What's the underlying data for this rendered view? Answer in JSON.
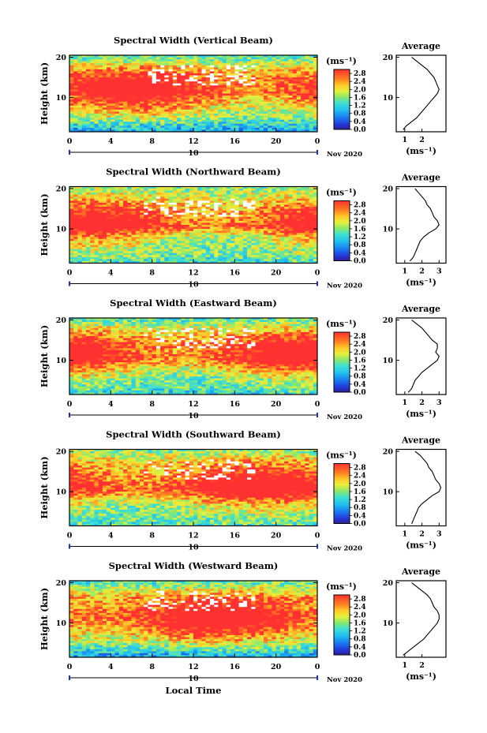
{
  "chart_data": {
    "type": "heatmap",
    "xlabel": "Local Time",
    "date_label": "Nov 2020",
    "day_label": "10",
    "x_ticks": [
      "0",
      "4",
      "8",
      "12",
      "16",
      "20",
      "0"
    ],
    "xlim": [
      0,
      24
    ],
    "ylabel": "Height (km)",
    "y_ticks": [
      "10",
      "20"
    ],
    "ylim": [
      1.5,
      20.5
    ],
    "colorbar": {
      "unit": "(ms⁻¹)",
      "ticks": [
        "0.0",
        "0.4",
        "0.8",
        "1.2",
        "1.6",
        "2.0",
        "2.4",
        "2.8"
      ],
      "range": [
        0.0,
        3.0
      ]
    },
    "average_panel": {
      "title": "Average",
      "xlabel": "(ms⁻¹)",
      "x_ticks": [
        "1",
        "2",
        "3"
      ],
      "xlim": [
        0.5,
        3.4
      ]
    },
    "panels": [
      {
        "title": "Spectral Width (Vertical Beam)",
        "avg_ticks_shown": [
          "1",
          "2"
        ],
        "heights": [
          2,
          3,
          4,
          5,
          6,
          7,
          8,
          9,
          10,
          11,
          12,
          13,
          14,
          15,
          16,
          17,
          18,
          19,
          20
        ],
        "average": [
          0.9,
          1.1,
          1.4,
          1.7,
          1.9,
          2.1,
          2.3,
          2.5,
          2.7,
          2.9,
          3.0,
          2.9,
          2.8,
          2.7,
          2.5,
          2.3,
          2.0,
          1.7,
          1.4
        ]
      },
      {
        "title": "Spectral Width (Northward Beam)",
        "avg_ticks_shown": [
          "1",
          "2",
          "3"
        ],
        "heights": [
          2,
          3,
          4,
          5,
          6,
          7,
          8,
          9,
          10,
          11,
          12,
          13,
          14,
          15,
          16,
          17,
          18,
          19,
          20
        ],
        "average": [
          1.3,
          1.5,
          1.6,
          1.7,
          1.8,
          1.9,
          2.1,
          2.4,
          2.8,
          3.0,
          2.9,
          2.7,
          2.6,
          2.5,
          2.3,
          2.2,
          2.0,
          1.8,
          1.6
        ]
      },
      {
        "title": "Spectral Width (Eastward Beam)",
        "avg_ticks_shown": [
          "1",
          "2",
          "3"
        ],
        "heights": [
          2,
          3,
          4,
          5,
          6,
          7,
          8,
          9,
          10,
          11,
          12,
          13,
          14,
          15,
          16,
          17,
          18,
          19,
          20
        ],
        "average": [
          1.2,
          1.4,
          1.5,
          1.6,
          1.8,
          2.0,
          2.3,
          2.6,
          2.9,
          3.0,
          2.8,
          2.9,
          2.9,
          2.6,
          2.4,
          2.2,
          2.0,
          1.7,
          1.4
        ]
      },
      {
        "title": "Spectral Width (Southward Beam)",
        "avg_ticks_shown": [
          "1",
          "2",
          "3"
        ],
        "heights": [
          2,
          3,
          4,
          5,
          6,
          7,
          8,
          9,
          10,
          11,
          12,
          13,
          14,
          15,
          16,
          17,
          18,
          19,
          20
        ],
        "average": [
          1.4,
          1.5,
          1.6,
          1.7,
          1.8,
          2.0,
          2.3,
          2.6,
          3.0,
          3.1,
          3.0,
          2.8,
          2.7,
          2.6,
          2.4,
          2.3,
          2.1,
          1.9,
          1.6
        ]
      },
      {
        "title": "Spectral Width (Westward Beam)",
        "avg_ticks_shown": [
          "1",
          "2"
        ],
        "heights": [
          2,
          3,
          4,
          5,
          6,
          7,
          8,
          9,
          10,
          11,
          12,
          13,
          14,
          15,
          16,
          17,
          18,
          19,
          20
        ],
        "average": [
          0.9,
          1.2,
          1.5,
          1.8,
          2.1,
          2.3,
          2.5,
          2.7,
          2.9,
          3.0,
          3.0,
          2.9,
          2.7,
          2.6,
          2.5,
          2.3,
          2.0,
          1.7,
          1.4
        ]
      }
    ]
  }
}
